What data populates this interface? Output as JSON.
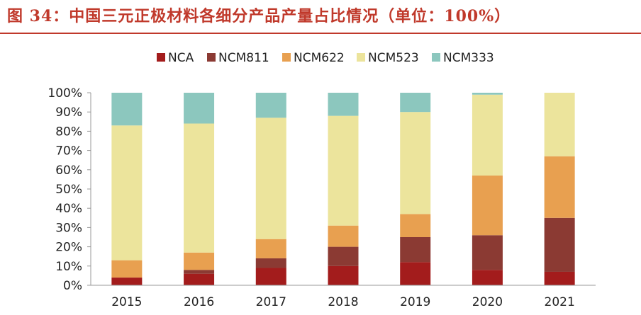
{
  "title": "图 34：中国三元正极材料各细分产品产量占比情况（单位：100%）",
  "chart_data": {
    "type": "bar",
    "stacked": true,
    "categories": [
      "2015",
      "2016",
      "2017",
      "2018",
      "2019",
      "2020",
      "2021"
    ],
    "ylim": [
      0,
      100
    ],
    "yticks": [
      "0%",
      "10%",
      "20%",
      "30%",
      "40%",
      "50%",
      "60%",
      "70%",
      "80%",
      "90%",
      "100%"
    ],
    "legend_position": "top",
    "series": [
      {
        "name": "NCA",
        "color": "#a31c1c",
        "values": [
          4,
          6,
          9,
          10,
          12,
          8,
          7
        ]
      },
      {
        "name": "NCM811",
        "color": "#8b3a33",
        "values": [
          0,
          2,
          5,
          10,
          13,
          18,
          28
        ]
      },
      {
        "name": "NCM622",
        "color": "#e8a050",
        "values": [
          9,
          9,
          10,
          11,
          12,
          31,
          32
        ]
      },
      {
        "name": "NCM523",
        "color": "#ece49c",
        "values": [
          70,
          67,
          63,
          57,
          53,
          42,
          33
        ]
      },
      {
        "name": "NCM333",
        "color": "#8cc7be",
        "values": [
          17,
          16,
          13,
          12,
          10,
          1,
          0
        ]
      }
    ]
  }
}
